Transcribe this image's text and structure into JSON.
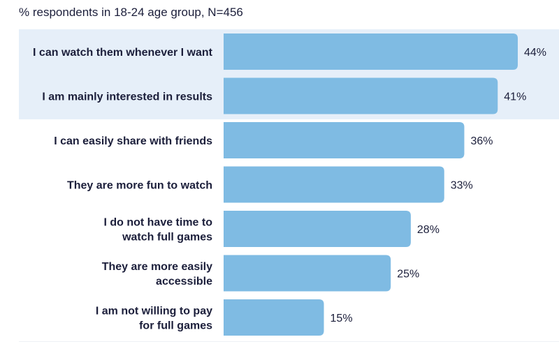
{
  "chart_data": {
    "type": "bar",
    "orientation": "horizontal",
    "subtitle": "% respondents in 18-24 age group, N=456",
    "categories": [
      "I can watch them whenever I want",
      "I am mainly interested in results",
      "I can easily share with friends",
      "They are more fun to watch",
      "I do not have time to watch full games",
      "They are more easily accessible",
      "I am not willing to pay for full games"
    ],
    "category_lines": [
      [
        "I can watch them whenever I want"
      ],
      [
        "I am mainly interested in results"
      ],
      [
        "I can easily share with friends"
      ],
      [
        "They are more fun to watch"
      ],
      [
        "I do not have time to",
        "watch full games"
      ],
      [
        "They are more easily",
        "accessible"
      ],
      [
        "I am not willing to pay",
        "for full games"
      ]
    ],
    "values": [
      44,
      41,
      36,
      33,
      28,
      25,
      15
    ],
    "value_labels": [
      "44%",
      "41%",
      "36%",
      "33%",
      "28%",
      "25%",
      "15%"
    ],
    "highlighted_categories": [
      0,
      1
    ],
    "bar_color": "#7fbbe3",
    "highlight_color": "#e6eff9"
  }
}
